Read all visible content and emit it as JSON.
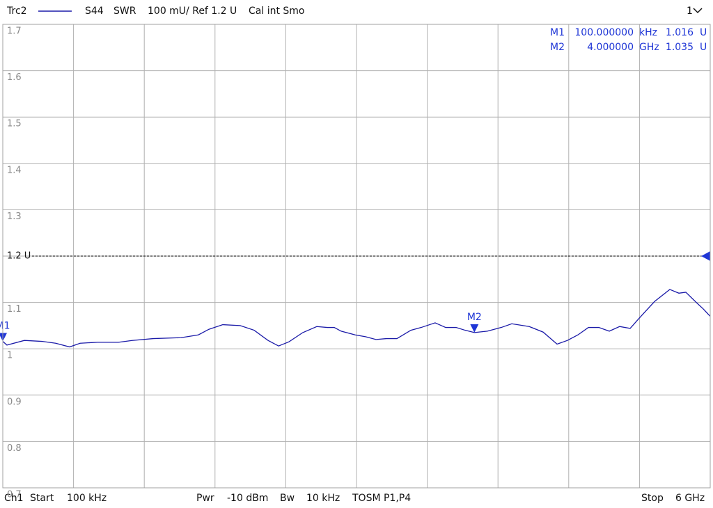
{
  "chart_data": {
    "type": "line",
    "header": [
      "S44",
      "SWR",
      "100 mU/ Ref 1.2 U",
      "Cal int Smo"
    ],
    "channel_menu": "1",
    "footer": [
      "Ch1",
      "Start",
      "100 kHz",
      "Pwr",
      "-10 dBm",
      "Bw",
      "10 kHz",
      "TOSM P1,P4",
      "Stop",
      "6 GHz"
    ],
    "xlim": [
      0.0001,
      6
    ],
    "vertical_divisions": 10,
    "ylim": [
      0.7,
      1.7
    ],
    "yticks": [
      1.7,
      1.6,
      1.5,
      1.4,
      1.3,
      {
        "value": 1.2,
        "label": "1.2 U"
      },
      1.1,
      1,
      0.9,
      0.8,
      0.7
    ],
    "reference_level": 1.2,
    "grid": true,
    "x": [
      0.0001,
      0.035,
      0.183,
      0.331,
      0.449,
      0.567,
      0.656,
      0.803,
      0.98,
      1.098,
      1.276,
      1.512,
      1.659,
      1.748,
      1.866,
      2.014,
      2.132,
      2.25,
      2.339,
      2.427,
      2.545,
      2.663,
      2.752,
      2.811,
      2.87,
      2.988,
      3.077,
      3.165,
      3.254,
      3.343,
      3.461,
      3.549,
      3.667,
      3.756,
      3.844,
      3.921,
      4.0,
      4.11,
      4.228,
      4.317,
      4.465,
      4.583,
      4.701,
      4.789,
      4.878,
      4.967,
      5.055,
      5.144,
      5.232,
      5.321,
      5.398,
      5.528,
      5.657,
      5.734,
      5.793,
      5.882,
      5.941,
      6
    ],
    "series": [
      {
        "name": "Trc2",
        "color": "#1a1aa8",
        "values": [
          1.016,
          1.008,
          1.018,
          1.016,
          1.012,
          1.004,
          1.012,
          1.014,
          1.014,
          1.018,
          1.022,
          1.024,
          1.03,
          1.042,
          1.052,
          1.05,
          1.04,
          1.018,
          1.006,
          1.015,
          1.035,
          1.048,
          1.046,
          1.046,
          1.038,
          1.03,
          1.026,
          1.02,
          1.022,
          1.022,
          1.04,
          1.046,
          1.056,
          1.046,
          1.046,
          1.04,
          1.035,
          1.038,
          1.046,
          1.054,
          1.048,
          1.036,
          1.01,
          1.018,
          1.03,
          1.046,
          1.046,
          1.038,
          1.048,
          1.044,
          1.066,
          1.102,
          1.128,
          1.12,
          1.122,
          1.1,
          1.086,
          1.07
        ]
      }
    ],
    "marker_color": "#1f36d6",
    "markers": [
      {
        "name": "M1",
        "x": 0.0001,
        "value": 1.016,
        "x_label": "100.000000",
        "x_unit": "kHz",
        "unit": "U"
      },
      {
        "name": "M2",
        "x": 4.0,
        "value": 1.035,
        "x_label": "4.000000",
        "x_unit": "GHz",
        "unit": "U"
      }
    ]
  }
}
